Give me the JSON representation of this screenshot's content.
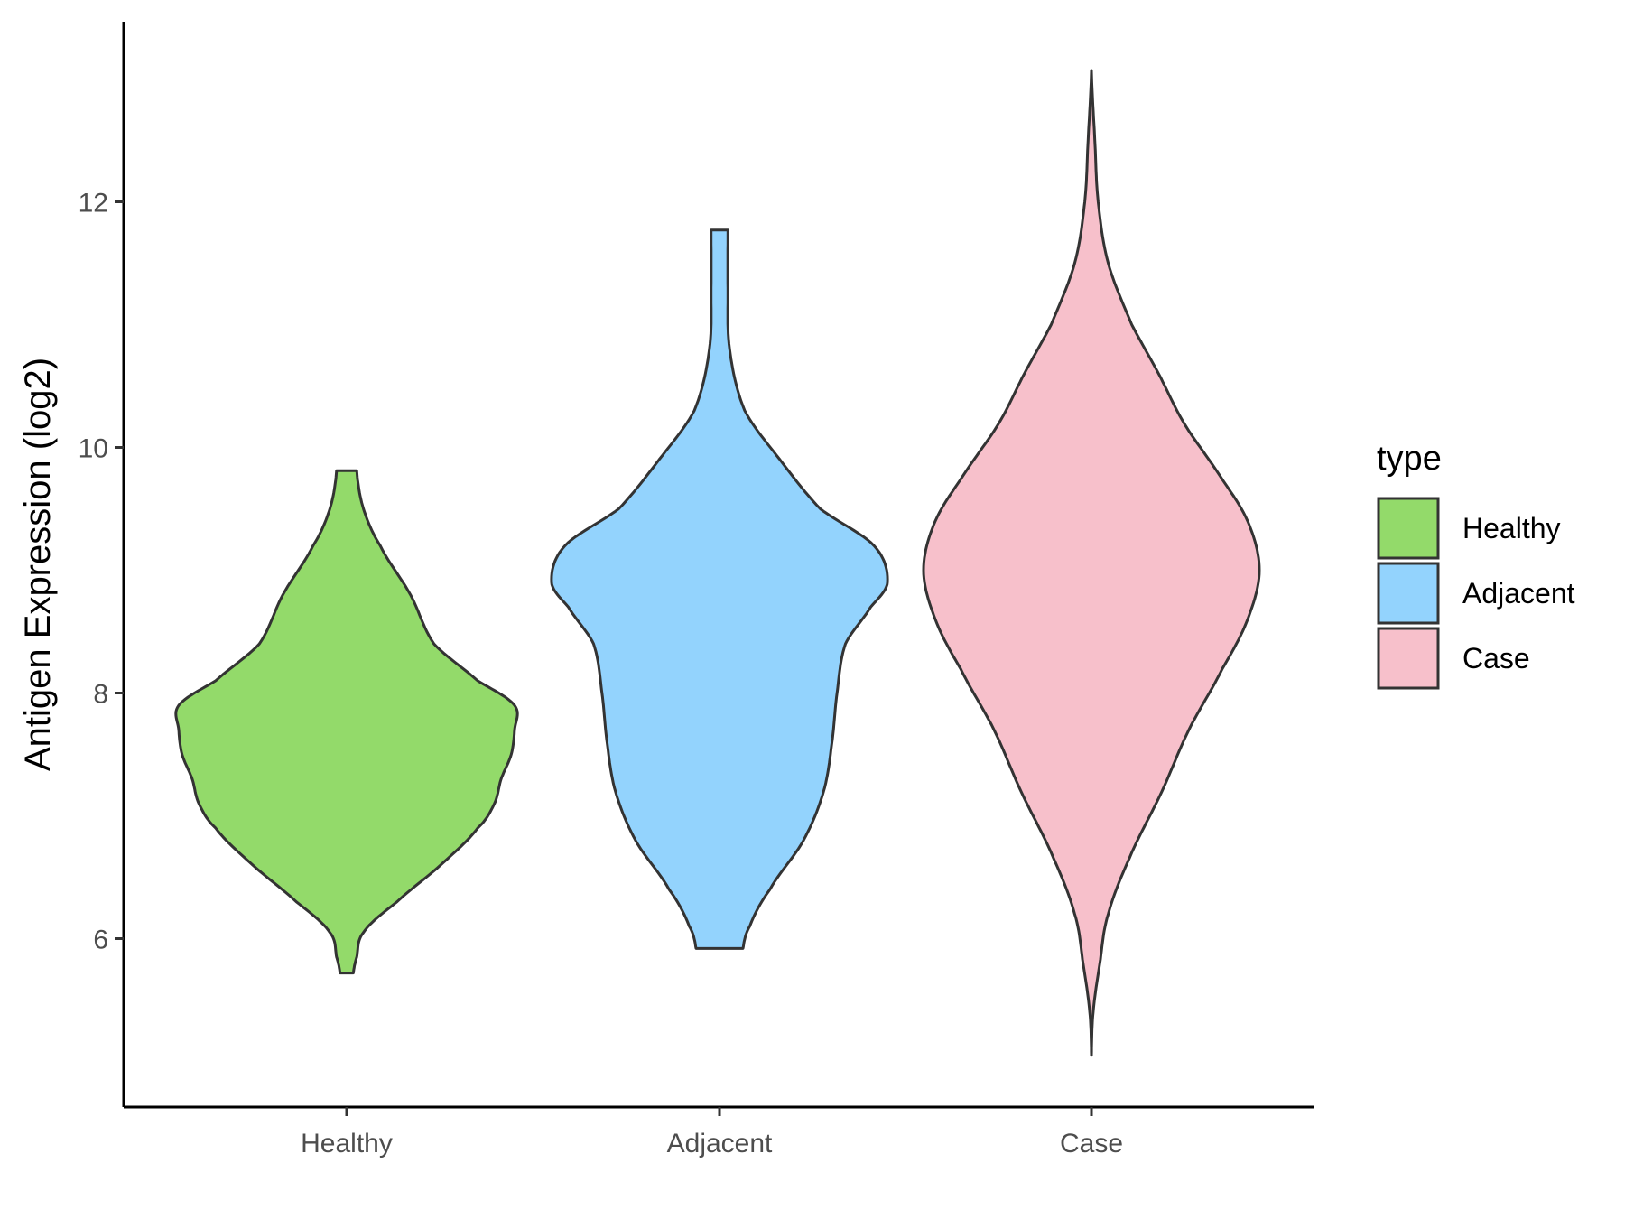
{
  "chart_data": {
    "type": "violin",
    "title": "",
    "xlabel": "",
    "ylabel": "Antigen Expression (log2)",
    "categories": [
      "Healthy",
      "Adjacent",
      "Case"
    ],
    "ylim": [
      4.7,
      13.8
    ],
    "yticks": [
      6,
      8,
      10,
      12
    ],
    "legend": {
      "title": "type",
      "position": "right",
      "entries": [
        "Healthy",
        "Adjacent",
        "Case"
      ]
    },
    "colors": {
      "Healthy": "#93DA6A",
      "Adjacent": "#93D3FD",
      "Case": "#F7C0CB",
      "outline": "#333333"
    },
    "series": [
      {
        "name": "Healthy",
        "y_min": 5.72,
        "y_max": 9.81,
        "profile": [
          [
            5.72,
            0.04
          ],
          [
            5.85,
            0.06
          ],
          [
            6.05,
            0.1
          ],
          [
            6.3,
            0.3
          ],
          [
            6.6,
            0.56
          ],
          [
            6.9,
            0.78
          ],
          [
            7.1,
            0.88
          ],
          [
            7.3,
            0.92
          ],
          [
            7.5,
            0.98
          ],
          [
            7.7,
            1.0
          ],
          [
            7.9,
            1.0
          ],
          [
            8.1,
            0.78
          ],
          [
            8.4,
            0.52
          ],
          [
            8.8,
            0.38
          ],
          [
            9.2,
            0.2
          ],
          [
            9.5,
            0.1
          ],
          [
            9.81,
            0.06
          ]
        ]
      },
      {
        "name": "Adjacent",
        "y_min": 5.92,
        "y_max": 11.77,
        "profile": [
          [
            5.92,
            0.14
          ],
          [
            6.1,
            0.18
          ],
          [
            6.4,
            0.3
          ],
          [
            6.8,
            0.5
          ],
          [
            7.2,
            0.62
          ],
          [
            7.6,
            0.67
          ],
          [
            8.0,
            0.7
          ],
          [
            8.4,
            0.75
          ],
          [
            8.7,
            0.9
          ],
          [
            8.9,
            1.0
          ],
          [
            9.2,
            0.92
          ],
          [
            9.5,
            0.6
          ],
          [
            9.9,
            0.36
          ],
          [
            10.3,
            0.15
          ],
          [
            10.8,
            0.06
          ],
          [
            11.3,
            0.05
          ],
          [
            11.77,
            0.05
          ]
        ]
      },
      {
        "name": "Case",
        "y_min": 5.05,
        "y_max": 13.07,
        "profile": [
          [
            5.05,
            0.0
          ],
          [
            5.4,
            0.01
          ],
          [
            5.8,
            0.05
          ],
          [
            6.2,
            0.1
          ],
          [
            6.7,
            0.24
          ],
          [
            7.2,
            0.42
          ],
          [
            7.7,
            0.58
          ],
          [
            8.2,
            0.78
          ],
          [
            8.6,
            0.93
          ],
          [
            9.0,
            1.0
          ],
          [
            9.4,
            0.93
          ],
          [
            9.8,
            0.75
          ],
          [
            10.2,
            0.55
          ],
          [
            10.6,
            0.4
          ],
          [
            11.0,
            0.24
          ],
          [
            11.5,
            0.1
          ],
          [
            12.0,
            0.04
          ],
          [
            12.5,
            0.02
          ],
          [
            13.07,
            0.0
          ]
        ]
      }
    ]
  }
}
